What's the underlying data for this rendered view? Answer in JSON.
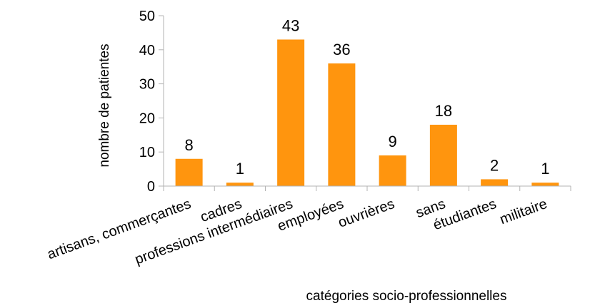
{
  "chart_data": {
    "type": "bar",
    "categories": [
      "artisans, commerçantes",
      "cadres",
      "professions intermédiaires",
      "employées",
      "ouvrières",
      "sans",
      "étudiantes",
      "militaire"
    ],
    "values": [
      8,
      1,
      43,
      36,
      9,
      18,
      2,
      1
    ],
    "xlabel": "catégories socio-professionnelles",
    "ylabel": "nombre de patientes",
    "ylim": [
      0,
      50
    ],
    "yticks": [
      0,
      10,
      20,
      30,
      40,
      50
    ],
    "bar_color": "#ff950e",
    "grid": false,
    "legend": "none",
    "data_labels": true
  }
}
